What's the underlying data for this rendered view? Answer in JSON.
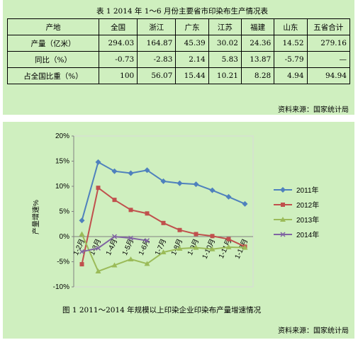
{
  "table": {
    "caption": "表 1   2014 年 1～6 月份主要省市印染布生产情况表",
    "headers": [
      "产地",
      "全国",
      "浙江",
      "广东",
      "江苏",
      "福建",
      "山东",
      "五省合计"
    ],
    "rows": [
      {
        "label": "产量（亿米）",
        "values": [
          "294.03",
          "164.87",
          "45.39",
          "30.02",
          "24.36",
          "14.52",
          "279.16"
        ]
      },
      {
        "label": "同比（%）",
        "values": [
          "-0.73",
          "-2.83",
          "2.14",
          "5.83",
          "13.87",
          "-5.79",
          "—"
        ]
      },
      {
        "label": "占全国比重（%）",
        "values": [
          "100",
          "56.07",
          "15.44",
          "10.21",
          "8.28",
          "4.94",
          "94.94"
        ]
      }
    ],
    "source": "资料来源：国家统计局"
  },
  "figure": {
    "caption": "图 1   2011～2014 年规模以上印染企业印染布产量增速情况",
    "source": "资料来源：国家统计局"
  },
  "chart_data": {
    "type": "line",
    "categories": [
      "1-2月",
      "1-3月",
      "1-4月",
      "1-5月",
      "1-6月",
      "1-7月",
      "1-8月",
      "1-9月",
      "1-10月",
      "1-11月",
      "1-12月"
    ],
    "ylabel": "产量增速%",
    "ylim": [
      -10,
      20
    ],
    "yticks": [
      "20%",
      "15%",
      "10%",
      "5%",
      "0%",
      "-5%",
      "-10%"
    ],
    "legend_position": "right",
    "series": [
      {
        "name": "2011年",
        "color": "#4f81bd",
        "marker": "diamond",
        "values": [
          3.2,
          14.8,
          13.0,
          12.6,
          13.2,
          11.0,
          10.6,
          10.4,
          9.2,
          7.9,
          6.5
        ]
      },
      {
        "name": "2012年",
        "color": "#c0504d",
        "marker": "square",
        "values": [
          -5.5,
          9.7,
          7.3,
          5.3,
          4.6,
          2.7,
          1.3,
          0.5,
          0.1,
          -0.5,
          -2.0
        ]
      },
      {
        "name": "2013年",
        "color": "#9bbb59",
        "marker": "triangle",
        "values": [
          0.5,
          -6.9,
          -5.7,
          -4.5,
          -5.4,
          -3.1,
          -2.4,
          -2.2,
          -2.5,
          -2.1,
          -2.2
        ]
      },
      {
        "name": "2014年",
        "color": "#8064a2",
        "marker": "cross",
        "values": [
          -3.0,
          -2.3,
          0.0,
          -0.3,
          -0.8,
          null,
          null,
          null,
          null,
          null,
          null
        ]
      }
    ]
  }
}
